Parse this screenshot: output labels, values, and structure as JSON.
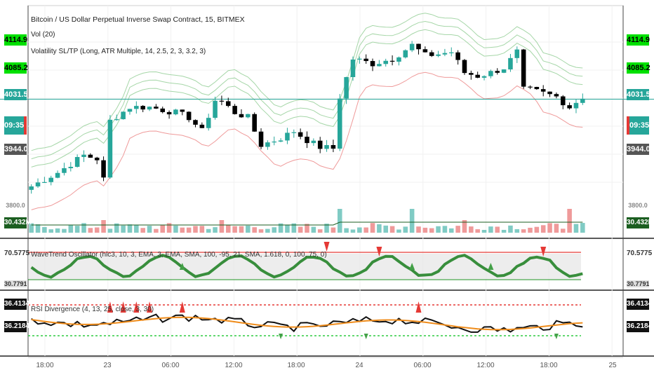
{
  "title": "Bitcoin / US Dollar Perpetual Inverse Swap Contract, 15, BITMEX",
  "legend": {
    "vol": "Vol (20)",
    "volatility": "Volatility SL/TP (Long, ATR Multiple, 14, 2.5, 2, 3, 3.2, 3)",
    "wavetrend": "WaveTrend Oscillator (hlc3, 10, 3, EMA, 3, EMA, SMA, 100, -95, 21, SMA, 1.618, 0, 100, 75, 0)",
    "rsi": "RSI Divergence (4, 13, 25, close, 3, 30)"
  },
  "price_tags": {
    "top": "4114.9",
    "second": "4085.2",
    "third": "4031.5",
    "countdown": "09:35",
    "bottom": "3944.0",
    "volume_ghost": "3800.0",
    "volume": "30.432M",
    "wt_top": "70.5775",
    "wt_bottom": "30.7791",
    "rsi_top": "36.4134",
    "rsi_bottom": "36.2184"
  },
  "colors": {
    "up": "#26a69a",
    "down": "#000000",
    "upper_band": "#a5d6a7",
    "lower_band": "#ef9a9a",
    "last_price_line": "#26a69a",
    "wt_line": "#388e3c",
    "rsi_ma": "#ef8c1b",
    "red_mark": "#e53935",
    "green_mark": "#43a047"
  },
  "chart_data": [
    {
      "type": "candlestick",
      "title": "Bitcoin / US Dollar Perpetual Inverse Swap Contract, 15, BITMEX",
      "x_ticks": [
        "18:00",
        "23",
        "06:00",
        "12:00",
        "18:00",
        "24",
        "06:00",
        "12:00",
        "18:00",
        "25"
      ],
      "last_price": 4031.5,
      "close_path": [
        [
          0,
          3905
        ],
        [
          4,
          3925
        ],
        [
          8,
          3950
        ],
        [
          10,
          3945
        ],
        [
          11,
          3915
        ],
        [
          12,
          4000
        ],
        [
          15,
          4020
        ],
        [
          18,
          4020
        ],
        [
          22,
          4012
        ],
        [
          24,
          4005
        ],
        [
          26,
          3985
        ],
        [
          28,
          4030
        ],
        [
          29,
          4028
        ],
        [
          31,
          4012
        ],
        [
          33,
          4005
        ],
        [
          35,
          3965
        ],
        [
          38,
          3975
        ],
        [
          40,
          3985
        ],
        [
          42,
          3972
        ],
        [
          44,
          3962
        ],
        [
          46,
          3960
        ],
        [
          47,
          4035
        ],
        [
          49,
          4090
        ],
        [
          52,
          4083
        ],
        [
          55,
          4090
        ],
        [
          58,
          4110
        ],
        [
          60,
          4095
        ],
        [
          62,
          4097
        ],
        [
          64,
          4100
        ],
        [
          66,
          4070
        ],
        [
          68,
          4065
        ],
        [
          70,
          4070
        ],
        [
          72,
          4077
        ],
        [
          74,
          4100
        ],
        [
          75,
          4045
        ],
        [
          76,
          4045
        ],
        [
          80,
          4035
        ],
        [
          82,
          4020
        ],
        [
          84,
          4035
        ]
      ],
      "candle_count": 85,
      "volume": {
        "title": "Vol (20)",
        "last": 30.432,
        "unit": "M"
      }
    },
    {
      "type": "line",
      "title": "WaveTrend Oscillator",
      "levels": [
        70.5775,
        30.7791
      ]
    },
    {
      "type": "line",
      "title": "RSI Divergence",
      "levels": [
        36.4134,
        36.2184
      ]
    }
  ]
}
